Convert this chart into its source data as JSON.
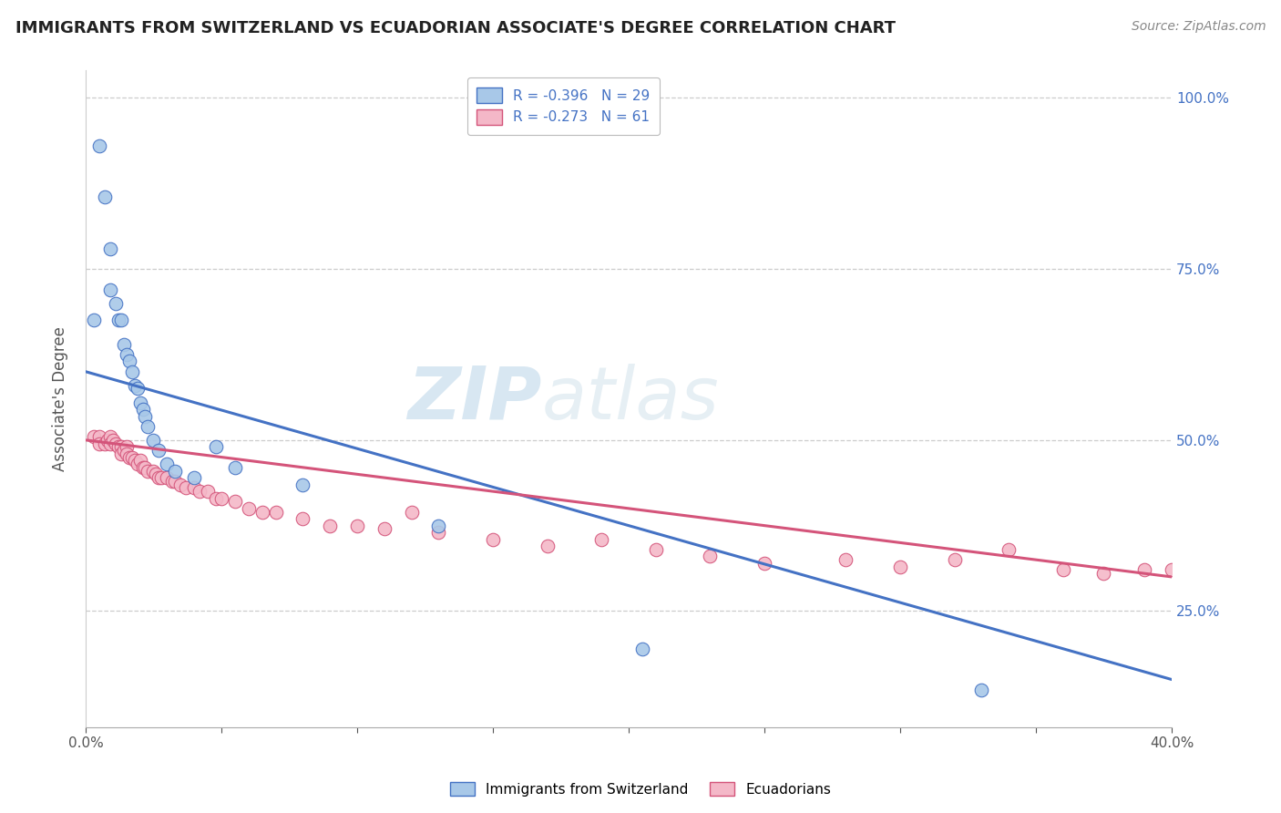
{
  "title": "IMMIGRANTS FROM SWITZERLAND VS ECUADORIAN ASSOCIATE'S DEGREE CORRELATION CHART",
  "source": "Source: ZipAtlas.com",
  "ylabel": "Associate's Degree",
  "legend_blue": "R = -0.396   N = 29",
  "legend_pink": "R = -0.273   N = 61",
  "legend_label_blue": "Immigrants from Switzerland",
  "legend_label_pink": "Ecuadorians",
  "blue_color": "#a8c8e8",
  "blue_line_color": "#4472c4",
  "pink_color": "#f4b8c8",
  "pink_line_color": "#d4547a",
  "xmin": 0.0,
  "xmax": 0.4,
  "ymin": 0.08,
  "ymax": 1.04,
  "blue_line_y0": 0.6,
  "blue_line_y1": 0.15,
  "pink_line_y0": 0.5,
  "pink_line_y1": 0.3,
  "blue_scatter_x": [
    0.003,
    0.005,
    0.007,
    0.009,
    0.009,
    0.011,
    0.012,
    0.013,
    0.014,
    0.015,
    0.016,
    0.017,
    0.018,
    0.019,
    0.02,
    0.021,
    0.022,
    0.023,
    0.025,
    0.027,
    0.03,
    0.033,
    0.04,
    0.048,
    0.055,
    0.08,
    0.13,
    0.205,
    0.33
  ],
  "blue_scatter_y": [
    0.675,
    0.93,
    0.855,
    0.78,
    0.72,
    0.7,
    0.675,
    0.675,
    0.64,
    0.625,
    0.615,
    0.6,
    0.58,
    0.575,
    0.555,
    0.545,
    0.535,
    0.52,
    0.5,
    0.485,
    0.465,
    0.455,
    0.445,
    0.49,
    0.46,
    0.435,
    0.375,
    0.195,
    0.135
  ],
  "pink_scatter_x": [
    0.003,
    0.005,
    0.005,
    0.007,
    0.008,
    0.009,
    0.009,
    0.01,
    0.011,
    0.012,
    0.013,
    0.013,
    0.014,
    0.015,
    0.015,
    0.016,
    0.017,
    0.018,
    0.019,
    0.02,
    0.021,
    0.022,
    0.023,
    0.025,
    0.026,
    0.027,
    0.028,
    0.03,
    0.032,
    0.033,
    0.035,
    0.037,
    0.04,
    0.042,
    0.045,
    0.048,
    0.05,
    0.055,
    0.06,
    0.065,
    0.07,
    0.08,
    0.09,
    0.1,
    0.11,
    0.12,
    0.13,
    0.15,
    0.17,
    0.19,
    0.21,
    0.23,
    0.25,
    0.28,
    0.3,
    0.32,
    0.34,
    0.36,
    0.375,
    0.39,
    0.4
  ],
  "pink_scatter_y": [
    0.505,
    0.505,
    0.495,
    0.495,
    0.5,
    0.505,
    0.495,
    0.5,
    0.495,
    0.49,
    0.49,
    0.48,
    0.485,
    0.49,
    0.48,
    0.475,
    0.475,
    0.47,
    0.465,
    0.47,
    0.46,
    0.46,
    0.455,
    0.455,
    0.45,
    0.445,
    0.445,
    0.445,
    0.44,
    0.44,
    0.435,
    0.43,
    0.43,
    0.425,
    0.425,
    0.415,
    0.415,
    0.41,
    0.4,
    0.395,
    0.395,
    0.385,
    0.375,
    0.375,
    0.37,
    0.395,
    0.365,
    0.355,
    0.345,
    0.355,
    0.34,
    0.33,
    0.32,
    0.325,
    0.315,
    0.325,
    0.34,
    0.31,
    0.305,
    0.31,
    0.31
  ]
}
